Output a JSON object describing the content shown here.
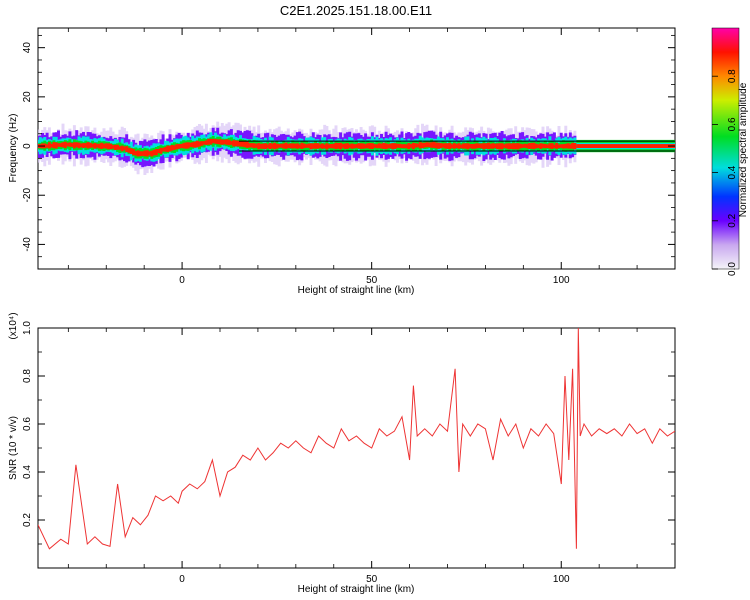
{
  "title": "C2E1.2025.151.18.00.E11",
  "chart_data": [
    {
      "type": "heatmap",
      "xlabel": "Height of straight line (km)",
      "ylabel": "Frequency (Hz)",
      "xlim": [
        -38,
        130
      ],
      "ylim": [
        -50,
        48
      ],
      "xticks": [
        0,
        50,
        100
      ],
      "yticks": [
        -40,
        -20,
        0,
        20,
        40
      ],
      "colorbar": {
        "label": "Normalized spectral amplitude",
        "range": [
          0,
          1
        ],
        "ticks": [
          "0.0",
          "0.2",
          "0.4",
          "0.6",
          "0.8"
        ],
        "ticks_values": [
          0,
          0.2,
          0.4,
          0.6,
          0.8
        ]
      },
      "ridge": {
        "x": [
          -38,
          -30,
          -20,
          -15,
          -12,
          -8,
          -5,
          0,
          5,
          8,
          12,
          20,
          40,
          60,
          65,
          70,
          80,
          90,
          100,
          104,
          130
        ],
        "y": [
          0,
          0.5,
          0,
          -1,
          -3,
          -3,
          -1.5,
          0,
          1,
          2,
          1.5,
          0,
          0,
          0,
          0.5,
          0,
          0,
          0,
          0,
          0,
          0
        ]
      },
      "band_end_x": 104,
      "hline_offsets": [
        -2,
        2
      ]
    },
    {
      "type": "line",
      "xlabel": "Height of straight line (km)",
      "ylabel": "SNR (10 * v/v)",
      "y_multiplier": "(x10⁴)",
      "xlim": [
        -38,
        130
      ],
      "ylim": [
        0,
        1.0
      ],
      "xticks": [
        0,
        50,
        100
      ],
      "yticks": [
        0.2,
        0.4,
        0.6,
        0.8,
        1.0
      ],
      "series": [
        {
          "color": "#ee3333",
          "x": [
            -38,
            -35,
            -32,
            -30,
            -28,
            -25,
            -23,
            -21,
            -19,
            -17,
            -15,
            -13,
            -11,
            -9,
            -7,
            -5,
            -3,
            -1,
            0,
            2,
            4,
            6,
            8,
            10,
            12,
            14,
            16,
            18,
            20,
            22,
            24,
            26,
            28,
            30,
            32,
            34,
            36,
            38,
            40,
            42,
            44,
            46,
            48,
            50,
            52,
            54,
            56,
            58,
            60,
            61,
            62,
            64,
            66,
            68,
            70,
            72,
            73,
            74,
            76,
            78,
            80,
            82,
            84,
            86,
            88,
            90,
            92,
            94,
            96,
            98,
            100,
            101,
            102,
            103,
            104,
            104.5,
            105,
            106,
            108,
            110,
            112,
            114,
            116,
            118,
            120,
            122,
            124,
            126,
            128,
            130
          ],
          "values": [
            0.18,
            0.08,
            0.12,
            0.1,
            0.43,
            0.1,
            0.13,
            0.1,
            0.09,
            0.35,
            0.13,
            0.21,
            0.18,
            0.22,
            0.3,
            0.28,
            0.3,
            0.27,
            0.32,
            0.35,
            0.33,
            0.36,
            0.45,
            0.3,
            0.4,
            0.42,
            0.47,
            0.45,
            0.5,
            0.45,
            0.48,
            0.52,
            0.5,
            0.53,
            0.5,
            0.48,
            0.55,
            0.52,
            0.5,
            0.58,
            0.53,
            0.55,
            0.52,
            0.5,
            0.58,
            0.55,
            0.57,
            0.63,
            0.45,
            0.76,
            0.55,
            0.58,
            0.55,
            0.6,
            0.57,
            0.83,
            0.4,
            0.6,
            0.55,
            0.6,
            0.58,
            0.45,
            0.62,
            0.55,
            0.6,
            0.5,
            0.58,
            0.55,
            0.6,
            0.56,
            0.35,
            0.8,
            0.45,
            0.83,
            0.08,
            1.0,
            0.55,
            0.6,
            0.55,
            0.58,
            0.56,
            0.58,
            0.55,
            0.6,
            0.56,
            0.58,
            0.52,
            0.58,
            0.55,
            0.57
          ]
        }
      ]
    }
  ]
}
